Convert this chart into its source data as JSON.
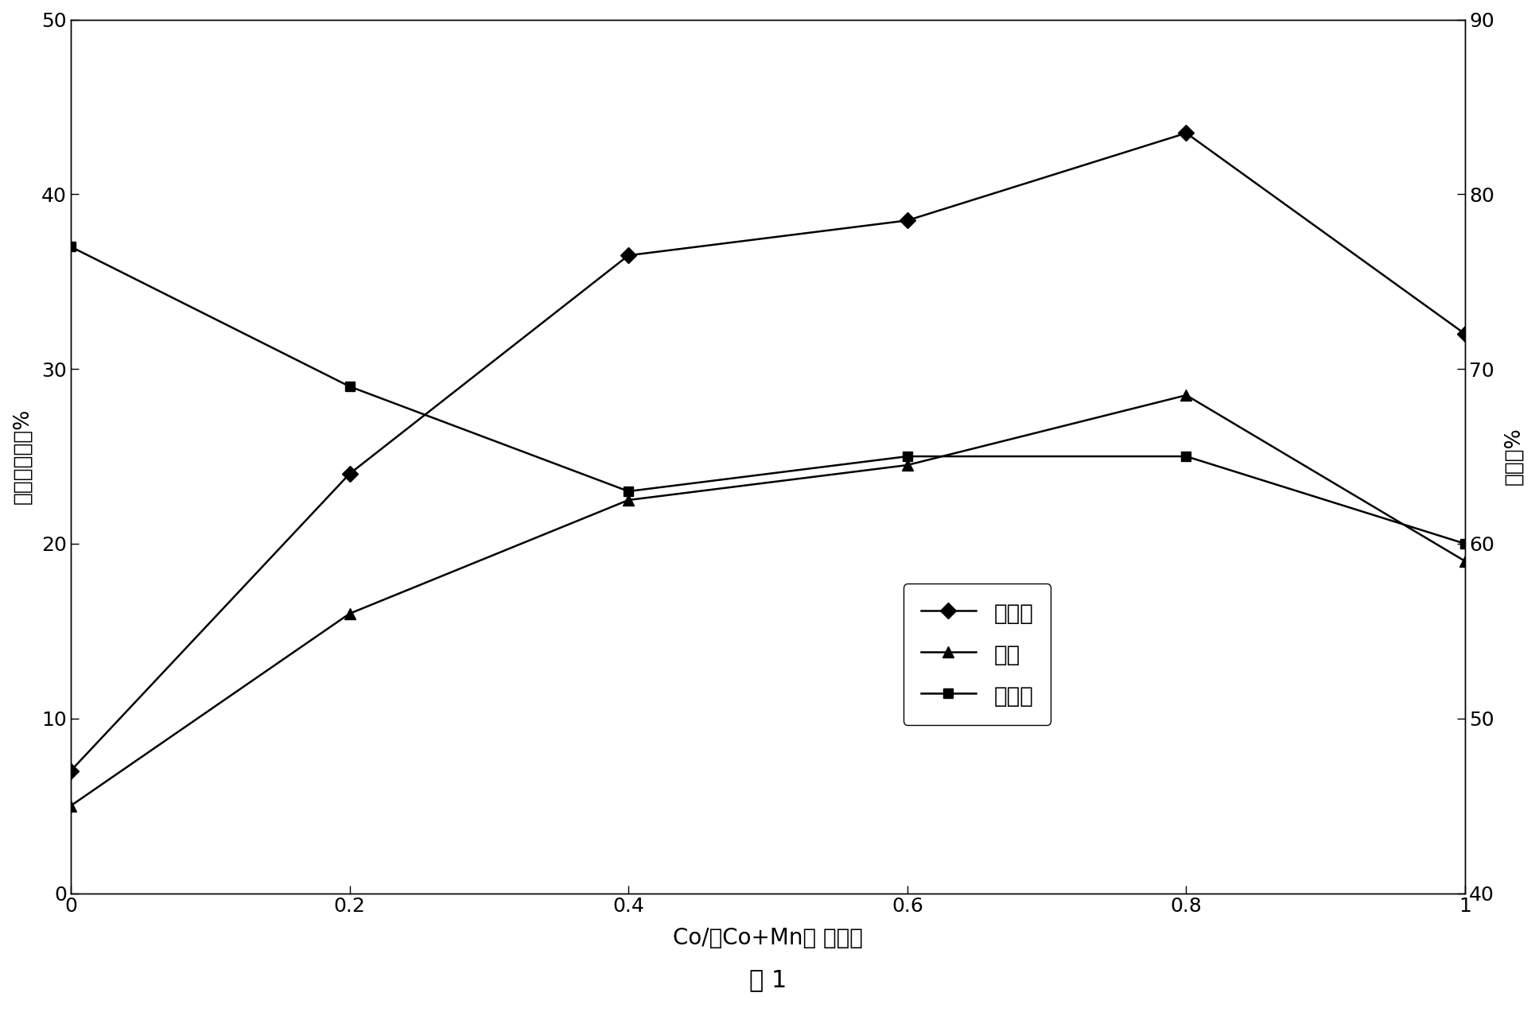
{
  "x": [
    0,
    0.2,
    0.4,
    0.6,
    0.8,
    1.0
  ],
  "conversion": [
    7,
    24,
    36.5,
    38.5,
    43.5,
    32
  ],
  "yield_data": [
    5,
    16,
    22.5,
    24.5,
    28.5,
    19
  ],
  "selectivity": [
    77,
    69,
    63,
    65,
    65,
    60
  ],
  "xlabel": "Co/（Co+Mn） 摩尔比",
  "ylabel_left": "转化率和收率%",
  "ylabel_right": "选择性%",
  "legend_conversion": "转化率",
  "legend_yield": "收率",
  "legend_selectivity": "选择性",
  "caption": "图 1",
  "xlim": [
    0,
    1.0
  ],
  "ylim_left": [
    0,
    50
  ],
  "ylim_right": [
    40,
    90
  ],
  "yticks_left": [
    0,
    10,
    20,
    30,
    40,
    50
  ],
  "yticks_right": [
    40,
    50,
    60,
    70,
    80,
    90
  ],
  "xticks": [
    0,
    0.2,
    0.4,
    0.6,
    0.8,
    1
  ],
  "xtick_labels": [
    "0",
    "0.2",
    "0.4",
    "0.6",
    "0.8",
    "1"
  ],
  "background_color": "#ffffff",
  "line_color": "#000000",
  "figwidth": 19.31,
  "figheight": 12.73,
  "dpi": 100
}
